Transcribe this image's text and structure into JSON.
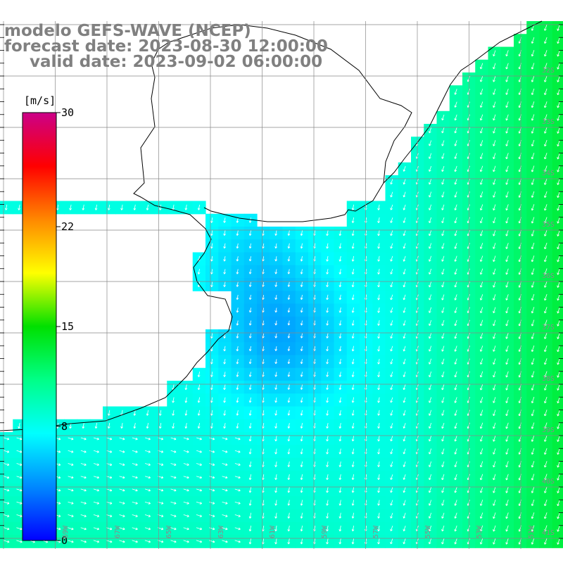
{
  "title": {
    "line1": "modelo GEFS-WAVE (NCEP)",
    "line2": "forecast date: 2023-08-30 12:00:00",
    "line3": "valid date: 2023-09-02 06:00:00"
  },
  "colorbar": {
    "unit": "[m/s]",
    "min": 0,
    "max": 30,
    "ticks": [
      "30",
      "22",
      "15",
      "8",
      "0"
    ],
    "tick_values": [
      30,
      22,
      15,
      8,
      0
    ],
    "colors": [
      "#0000ff",
      "#0088ff",
      "#00ffff",
      "#00ff88",
      "#00e000",
      "#ffff00",
      "#ff8800",
      "#ff0000",
      "#cc0088"
    ]
  },
  "map": {
    "lat_labels": [
      "32S",
      "33S",
      "34S",
      "35S",
      "36S",
      "37S",
      "38S",
      "39S",
      "40S",
      "41S"
    ],
    "lon_labels": [
      "69W",
      "67W",
      "65W",
      "63W",
      "61W",
      "59W",
      "57W",
      "55W",
      "53W",
      "51W"
    ],
    "land_color": "#ffffff",
    "grid_color": "#888888",
    "arrow_color": "#ffffff"
  }
}
